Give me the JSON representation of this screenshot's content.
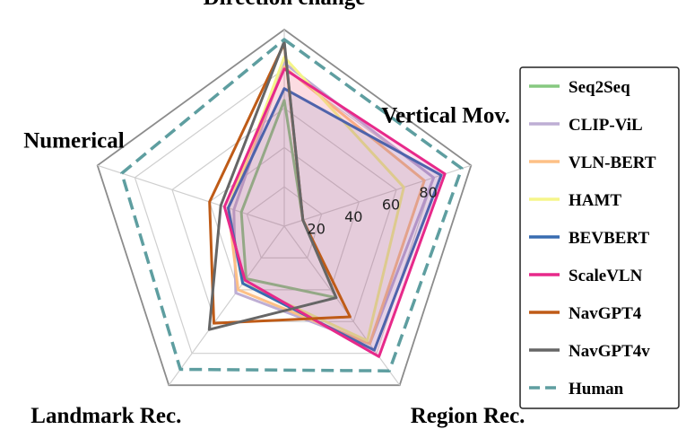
{
  "chart_data": {
    "type": "radar",
    "axes": [
      "Direction change",
      "Vertical Mov.",
      "Region Rec.",
      "Landmark Rec.",
      "Numerical"
    ],
    "rlim": [
      0,
      100
    ],
    "ticks": [
      20,
      40,
      60,
      80
    ],
    "grid": true,
    "legend_position": "right",
    "series": [
      {
        "name": "Seq2Seq",
        "color": "#86c980",
        "style": "solid",
        "fill": false,
        "values": [
          64,
          10,
          45,
          33,
          23
        ]
      },
      {
        "name": "CLIP-ViL",
        "color": "#beaed4",
        "style": "solid",
        "fill": false,
        "values": [
          83,
          80,
          74,
          42,
          27
        ]
      },
      {
        "name": "VLN-BERT",
        "color": "#fdc086",
        "style": "solid",
        "fill": true,
        "values": [
          81,
          75,
          74,
          40,
          30
        ]
      },
      {
        "name": "HAMT",
        "color": "#f5f58a",
        "style": "solid",
        "fill": false,
        "values": [
          86,
          64,
          72,
          36,
          30
        ]
      },
      {
        "name": "BEVBERT",
        "color": "#386cb0",
        "style": "solid",
        "fill": true,
        "values": [
          70,
          84,
          78,
          36,
          30
        ]
      },
      {
        "name": "ScaleVLN",
        "color": "#e7298a",
        "style": "solid",
        "fill": true,
        "values": [
          80,
          86,
          82,
          34,
          32
        ]
      },
      {
        "name": "NavGPT4",
        "color": "#bf5b17",
        "style": "solid",
        "fill": false,
        "values": [
          93,
          10,
          57,
          61,
          40
        ]
      },
      {
        "name": "NavGPT4v",
        "color": "#666666",
        "style": "solid",
        "fill": false,
        "values": [
          94,
          10,
          45,
          65,
          34
        ]
      },
      {
        "name": "Human",
        "color": "#5e9ea0",
        "style": "dashed",
        "fill": false,
        "values": [
          95,
          95,
          91,
          90,
          87
        ]
      }
    ]
  }
}
